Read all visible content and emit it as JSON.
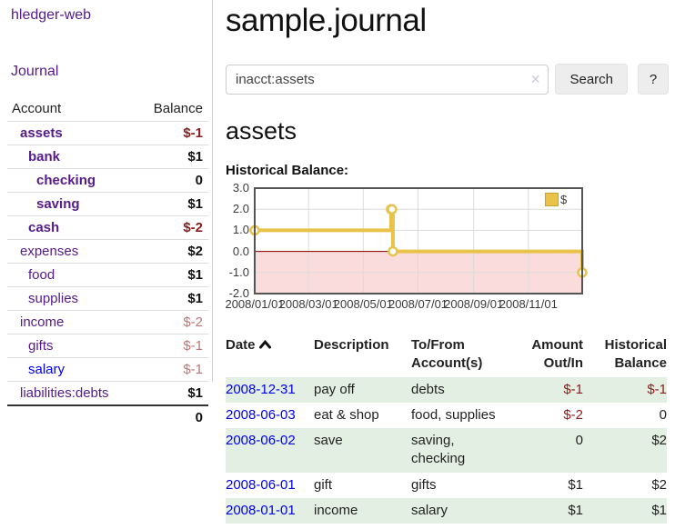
{
  "colors": {
    "link_visited": "#551a8b",
    "link_unvisited": "#0000ee",
    "negative_strong": "#8b1c1c",
    "negative_muted": "#bd7575",
    "row_stripe_green": "#e2efe2",
    "series_gold": "#e9c24a",
    "negative_region_pink": "#fadcdc",
    "zero_line_red": "#8b0000"
  },
  "sidebar": {
    "app_title": "hledger-web",
    "journal_label": "Journal",
    "accounts_table": {
      "headers": {
        "account": "Account",
        "balance": "Balance"
      },
      "rows": [
        {
          "name": "assets",
          "indent": 1,
          "bold": true,
          "balance": "$-1",
          "tone": "neg-strong",
          "link": "visited"
        },
        {
          "name": "bank",
          "indent": 2,
          "bold": true,
          "balance": "$1",
          "tone": "pos",
          "link": "visited"
        },
        {
          "name": "checking",
          "indent": 3,
          "bold": true,
          "balance": "0",
          "tone": "pos",
          "link": "visited"
        },
        {
          "name": "saving",
          "indent": 3,
          "bold": true,
          "balance": "$1",
          "tone": "pos",
          "link": "visited"
        },
        {
          "name": "cash",
          "indent": 2,
          "bold": true,
          "balance": "$-2",
          "tone": "neg-strong",
          "link": "visited"
        },
        {
          "name": "expenses",
          "indent": 1,
          "bold": false,
          "balance": "$2",
          "tone": "pos",
          "link": "visited"
        },
        {
          "name": "food",
          "indent": 2,
          "bold": false,
          "balance": "$1",
          "tone": "pos",
          "link": "visited"
        },
        {
          "name": "supplies",
          "indent": 2,
          "bold": false,
          "balance": "$1",
          "tone": "pos",
          "link": "visited"
        },
        {
          "name": "income",
          "indent": 1,
          "bold": false,
          "balance": "$-2",
          "tone": "neg-muted",
          "link": "visited"
        },
        {
          "name": "gifts",
          "indent": 2,
          "bold": false,
          "balance": "$-1",
          "tone": "neg-muted",
          "link": "visited"
        },
        {
          "name": "salary",
          "indent": 2,
          "bold": false,
          "balance": "$-1",
          "tone": "neg-muted",
          "link": "unvisited"
        },
        {
          "name": "liabilities:debts",
          "indent": 1,
          "bold": false,
          "balance": "$1",
          "tone": "pos",
          "link": "visited"
        }
      ],
      "total": "0"
    }
  },
  "main": {
    "title": "sample.journal",
    "search": {
      "value": "inacct:assets",
      "clear_icon": "✕",
      "button_label": "Search",
      "help_label": "?"
    },
    "account_heading": "assets",
    "chart_label": "Historical Balance:"
  },
  "chart_data": {
    "type": "line",
    "title": "Historical Balance:",
    "step": true,
    "markers": true,
    "xlim": [
      "2008-01-01",
      "2008-12-31"
    ],
    "ylim": [
      -2,
      3
    ],
    "x_ticks": [
      {
        "date": "2008-01-01",
        "label": "2008/01/01"
      },
      {
        "date": "2008-03-01",
        "label": "2008/03/01"
      },
      {
        "date": "2008-05-01",
        "label": "2008/05/01"
      },
      {
        "date": "2008-07-01",
        "label": "2008/07/01"
      },
      {
        "date": "2008-09-01",
        "label": "2008/09/01"
      },
      {
        "date": "2008-11-01",
        "label": "2008/11/01"
      }
    ],
    "y_ticks": [
      {
        "v": 3,
        "label": "3.0"
      },
      {
        "v": 2,
        "label": "2.0"
      },
      {
        "v": 1,
        "label": "1.0"
      },
      {
        "v": 0,
        "label": "0.0"
      },
      {
        "v": -1,
        "label": "-1.0"
      },
      {
        "v": -2,
        "label": "-2.0"
      }
    ],
    "series": [
      {
        "name": "$",
        "color": "#e9c24a",
        "points": [
          {
            "date": "2008-01-01",
            "value": 1
          },
          {
            "date": "2008-06-01",
            "value": 2
          },
          {
            "date": "2008-06-02",
            "value": 2
          },
          {
            "date": "2008-06-03",
            "value": 0
          },
          {
            "date": "2008-12-31",
            "value": -1
          }
        ]
      }
    ],
    "legend": {
      "label": "$",
      "position": "top-right"
    },
    "grid": true,
    "negative_region_fill": "#fadcdc",
    "zero_line_color": "#8b0000"
  },
  "register_table": {
    "headers": {
      "date": "Date",
      "description": "Description",
      "tofrom": "To/From Account(s)",
      "amount": "Amount Out/In",
      "historical": "Historical Balance"
    },
    "rows": [
      {
        "date": "2008-12-31",
        "description": "pay off",
        "accounts": "debts",
        "amount": "$-1",
        "amount_tone": "neg-strong",
        "historical": "$-1",
        "historical_tone": "neg-strong",
        "stripe": true
      },
      {
        "date": "2008-06-03",
        "description": "eat & shop",
        "accounts": "food, supplies",
        "amount": "$-2",
        "amount_tone": "neg-strong",
        "historical": "0",
        "historical_tone": "pos",
        "stripe": false
      },
      {
        "date": "2008-06-02",
        "description": "save",
        "accounts": "saving, checking",
        "amount": "0",
        "amount_tone": "pos",
        "historical": "$2",
        "historical_tone": "pos",
        "stripe": true
      },
      {
        "date": "2008-06-01",
        "description": "gift",
        "accounts": "gifts",
        "amount": "$1",
        "amount_tone": "pos",
        "historical": "$2",
        "historical_tone": "pos",
        "stripe": false
      },
      {
        "date": "2008-01-01",
        "description": "income",
        "accounts": "salary",
        "amount": "$1",
        "amount_tone": "pos",
        "historical": "$1",
        "historical_tone": "pos",
        "stripe": true
      }
    ]
  }
}
